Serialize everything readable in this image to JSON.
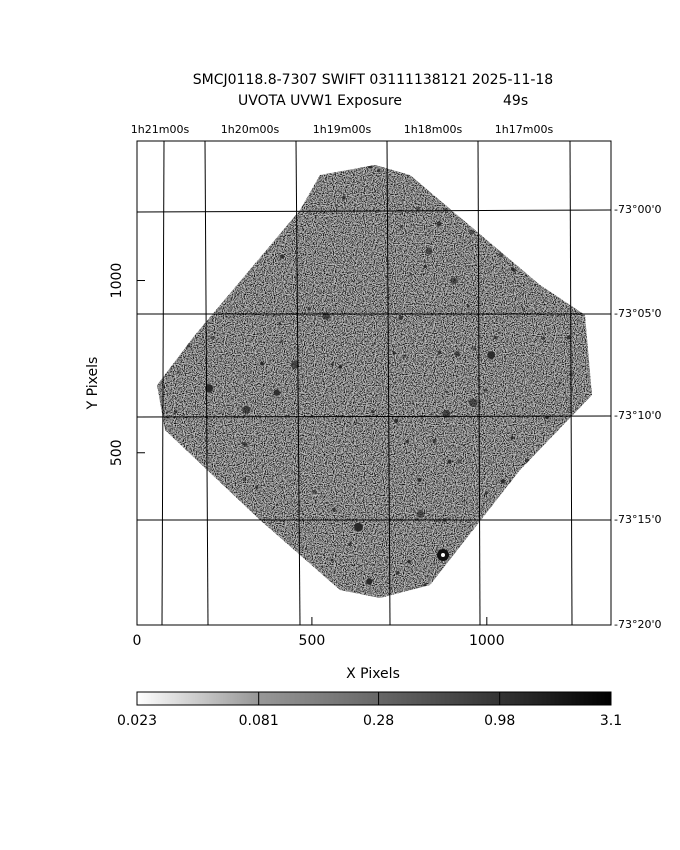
{
  "chart_data": {
    "type": "image",
    "title": "SMCJ0118.8-7307 SWIFT 03111138121 2025-11-18",
    "subtitle": "UVOTA UVW1 Exposure",
    "exposure": "49s",
    "xlabel": "X Pixels",
    "ylabel": "Y Pixels",
    "xlim": [
      0,
      1355
    ],
    "ylim": [
      0,
      1405
    ],
    "xticks": [
      0,
      500,
      1000
    ],
    "yticks": [
      500,
      1000
    ],
    "top_ticks": [
      "1h21m00s",
      "1h20m00s",
      "1h19m00s",
      "1h18m00s",
      "1h17m00s"
    ],
    "right_ticks": [
      "-73°00'0",
      "-73°05'0",
      "-73°10'0",
      "-73°15'0",
      "-73°20'0"
    ],
    "colorbar": {
      "scale": "log",
      "lim": [
        0.023,
        3.1
      ],
      "ticks": [
        0.023,
        0.081,
        0.28,
        0.98,
        3.1
      ]
    }
  }
}
